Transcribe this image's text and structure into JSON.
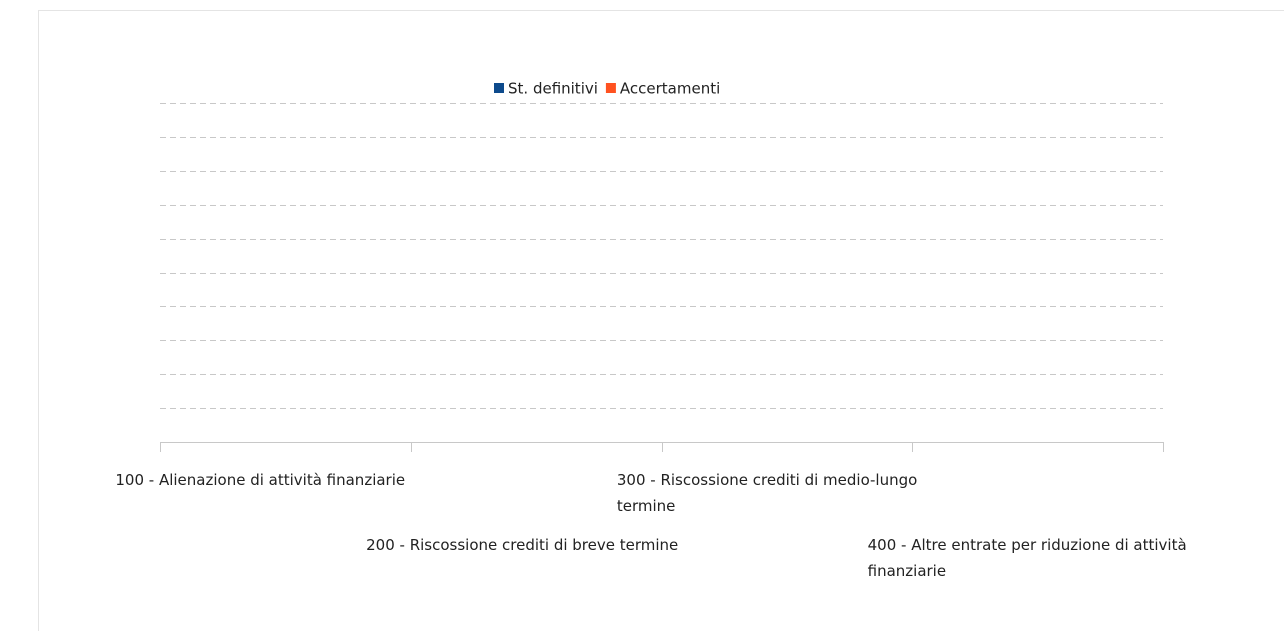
{
  "chart_data": {
    "type": "bar",
    "categories": [
      "100 - Alienazione di attività finanziarie",
      "200 - Riscossione crediti di breve termine",
      "300 - Riscossione crediti di medio-lungo termine",
      "400 - Altre entrate per riduzione di attività finanziarie"
    ],
    "series": [
      {
        "name": "St. definitivi",
        "color": "#0d4a8c",
        "values": [
          0,
          0,
          0,
          0
        ]
      },
      {
        "name": "Accertamenti",
        "color": "#ff5220",
        "values": [
          0,
          0,
          0,
          0
        ]
      }
    ],
    "ylim": [
      0,
      10
    ],
    "yticks": [
      1,
      2,
      3,
      4,
      5,
      6,
      7,
      8,
      9,
      10
    ],
    "grid": true,
    "legend": "top"
  }
}
